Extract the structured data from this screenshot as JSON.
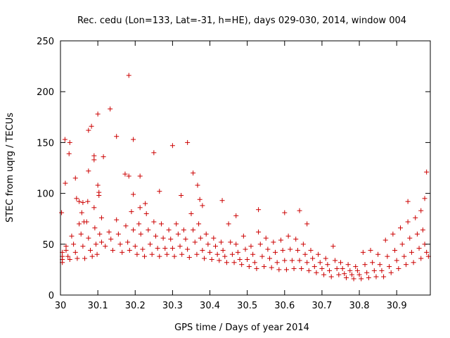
{
  "chart_data": {
    "type": "scatter",
    "title": "Rec. cedu (Lon=133, Lat=-31, h=HE), days 029-030, 2014, window 004",
    "xlabel": "GPS time / Days of year 2014",
    "ylabel": "STEC from uqrg / TECUs",
    "xlim": [
      30,
      30.99
    ],
    "ylim": [
      0,
      250
    ],
    "xticks": [
      30,
      30.1,
      30.2,
      30.3,
      30.4,
      30.5,
      30.6,
      30.7,
      30.8,
      30.9
    ],
    "xtick_labels": [
      "30",
      "30.1",
      "30.2",
      "30.3",
      "30.4",
      "30.5",
      "30.6",
      "30.7",
      "30.8",
      "30.9"
    ],
    "yticks": [
      0,
      50,
      100,
      150,
      200,
      250
    ],
    "ytick_labels": [
      "0",
      "50",
      "100",
      "150",
      "200",
      "250"
    ],
    "marker": "+",
    "color": "#cc0000",
    "grid": false,
    "series": [
      {
        "name": "STEC",
        "points": [
          [
            30.003,
            81
          ],
          [
            30.013,
            110
          ],
          [
            30.012,
            153
          ],
          [
            30.025,
            150
          ],
          [
            30.023,
            139
          ],
          [
            30.04,
            115
          ],
          [
            30.043,
            95
          ],
          [
            30.05,
            92
          ],
          [
            30.057,
            81
          ],
          [
            30.06,
            91
          ],
          [
            30.063,
            72
          ],
          [
            30.073,
            92
          ],
          [
            30.075,
            162
          ],
          [
            30.075,
            122
          ],
          [
            30.083,
            166
          ],
          [
            30.09,
            137
          ],
          [
            30.09,
            133
          ],
          [
            30.1,
            178
          ],
          [
            30.1,
            108
          ],
          [
            30.103,
            101
          ],
          [
            30.103,
            98
          ],
          [
            30.11,
            76
          ],
          [
            30.115,
            136
          ],
          [
            30.133,
            183
          ],
          [
            30.15,
            156
          ],
          [
            30.173,
            119
          ],
          [
            30.183,
            216
          ],
          [
            30.183,
            117
          ],
          [
            30.195,
            153
          ],
          [
            30.195,
            99
          ],
          [
            30.213,
            117
          ],
          [
            30.213,
            86
          ],
          [
            30.227,
            90
          ],
          [
            30.25,
            140
          ],
          [
            30.265,
            102
          ],
          [
            30.3,
            147
          ],
          [
            30.323,
            98
          ],
          [
            30.34,
            150
          ],
          [
            30.355,
            120
          ],
          [
            30.367,
            108
          ],
          [
            30.373,
            94
          ],
          [
            30.38,
            88
          ],
          [
            30.433,
            93
          ],
          [
            30.47,
            78
          ],
          [
            30.53,
            84
          ],
          [
            30.6,
            81
          ],
          [
            30.64,
            83
          ],
          [
            30.66,
            70
          ],
          [
            30.93,
            92
          ],
          [
            30.98,
            121
          ],
          [
            30.975,
            95
          ],
          [
            30.965,
            83
          ],
          [
            30.005,
            42
          ],
          [
            30.005,
            38
          ],
          [
            30.005,
            35
          ],
          [
            30.005,
            32
          ],
          [
            30.015,
            48
          ],
          [
            30.015,
            44
          ],
          [
            30.02,
            38
          ],
          [
            30.025,
            35
          ],
          [
            30.03,
            58
          ],
          [
            30.035,
            50
          ],
          [
            30.04,
            42
          ],
          [
            30.045,
            36
          ],
          [
            30.05,
            70
          ],
          [
            30.055,
            60
          ],
          [
            30.06,
            48
          ],
          [
            30.065,
            36
          ],
          [
            30.07,
            72
          ],
          [
            30.075,
            56
          ],
          [
            30.08,
            44
          ],
          [
            30.085,
            38
          ],
          [
            30.09,
            86
          ],
          [
            30.092,
            66
          ],
          [
            30.095,
            50
          ],
          [
            30.098,
            40
          ],
          [
            30.105,
            60
          ],
          [
            30.11,
            52
          ],
          [
            30.12,
            48
          ],
          [
            30.13,
            62
          ],
          [
            30.135,
            55
          ],
          [
            30.14,
            44
          ],
          [
            30.15,
            74
          ],
          [
            30.155,
            60
          ],
          [
            30.16,
            50
          ],
          [
            30.165,
            42
          ],
          [
            30.175,
            68
          ],
          [
            30.18,
            52
          ],
          [
            30.185,
            44
          ],
          [
            30.19,
            82
          ],
          [
            30.195,
            64
          ],
          [
            30.2,
            48
          ],
          [
            30.205,
            40
          ],
          [
            30.21,
            70
          ],
          [
            30.215,
            60
          ],
          [
            30.22,
            45
          ],
          [
            30.225,
            38
          ],
          [
            30.23,
            80
          ],
          [
            30.235,
            64
          ],
          [
            30.24,
            50
          ],
          [
            30.245,
            40
          ],
          [
            30.25,
            72
          ],
          [
            30.255,
            58
          ],
          [
            30.26,
            46
          ],
          [
            30.265,
            38
          ],
          [
            30.27,
            70
          ],
          [
            30.275,
            56
          ],
          [
            30.28,
            46
          ],
          [
            30.285,
            40
          ],
          [
            30.29,
            64
          ],
          [
            30.295,
            55
          ],
          [
            30.3,
            46
          ],
          [
            30.305,
            38
          ],
          [
            30.31,
            70
          ],
          [
            30.315,
            60
          ],
          [
            30.32,
            48
          ],
          [
            30.325,
            40
          ],
          [
            30.33,
            64
          ],
          [
            30.335,
            55
          ],
          [
            30.34,
            45
          ],
          [
            30.345,
            37
          ],
          [
            30.35,
            80
          ],
          [
            30.355,
            64
          ],
          [
            30.36,
            52
          ],
          [
            30.365,
            40
          ],
          [
            30.37,
            70
          ],
          [
            30.375,
            56
          ],
          [
            30.38,
            44
          ],
          [
            30.385,
            36
          ],
          [
            30.39,
            60
          ],
          [
            30.395,
            50
          ],
          [
            30.4,
            42
          ],
          [
            30.405,
            35
          ],
          [
            30.41,
            56
          ],
          [
            30.415,
            48
          ],
          [
            30.42,
            40
          ],
          [
            30.425,
            34
          ],
          [
            30.43,
            52
          ],
          [
            30.435,
            44
          ],
          [
            30.44,
            38
          ],
          [
            30.445,
            32
          ],
          [
            30.45,
            70
          ],
          [
            30.455,
            52
          ],
          [
            30.46,
            40
          ],
          [
            30.465,
            32
          ],
          [
            30.47,
            50
          ],
          [
            30.475,
            42
          ],
          [
            30.48,
            35
          ],
          [
            30.485,
            30
          ],
          [
            30.49,
            58
          ],
          [
            30.495,
            45
          ],
          [
            30.5,
            35
          ],
          [
            30.505,
            28
          ],
          [
            30.51,
            48
          ],
          [
            30.515,
            40
          ],
          [
            30.52,
            32
          ],
          [
            30.525,
            26
          ],
          [
            30.53,
            62
          ],
          [
            30.535,
            50
          ],
          [
            30.54,
            38
          ],
          [
            30.545,
            28
          ],
          [
            30.55,
            56
          ],
          [
            30.555,
            45
          ],
          [
            30.56,
            36
          ],
          [
            30.565,
            27
          ],
          [
            30.57,
            52
          ],
          [
            30.575,
            42
          ],
          [
            30.58,
            32
          ],
          [
            30.585,
            25
          ],
          [
            30.59,
            54
          ],
          [
            30.595,
            44
          ],
          [
            30.6,
            34
          ],
          [
            30.605,
            25
          ],
          [
            30.61,
            58
          ],
          [
            30.615,
            45
          ],
          [
            30.62,
            34
          ],
          [
            30.625,
            26
          ],
          [
            30.63,
            55
          ],
          [
            30.635,
            44
          ],
          [
            30.64,
            34
          ],
          [
            30.645,
            26
          ],
          [
            30.65,
            50
          ],
          [
            30.655,
            40
          ],
          [
            30.66,
            32
          ],
          [
            30.665,
            24
          ],
          [
            30.67,
            44
          ],
          [
            30.675,
            36
          ],
          [
            30.68,
            28
          ],
          [
            30.685,
            22
          ],
          [
            30.69,
            40
          ],
          [
            30.695,
            32
          ],
          [
            30.7,
            26
          ],
          [
            30.705,
            20
          ],
          [
            30.71,
            36
          ],
          [
            30.715,
            30
          ],
          [
            30.72,
            24
          ],
          [
            30.725,
            18
          ],
          [
            30.73,
            48
          ],
          [
            30.735,
            34
          ],
          [
            30.74,
            26
          ],
          [
            30.745,
            20
          ],
          [
            30.75,
            32
          ],
          [
            30.755,
            26
          ],
          [
            30.76,
            21
          ],
          [
            30.765,
            17
          ],
          [
            30.77,
            30
          ],
          [
            30.775,
            24
          ],
          [
            30.78,
            20
          ],
          [
            30.785,
            16
          ],
          [
            30.79,
            28
          ],
          [
            30.795,
            24
          ],
          [
            30.8,
            20
          ],
          [
            30.805,
            16
          ],
          [
            30.81,
            42
          ],
          [
            30.815,
            30
          ],
          [
            30.82,
            22
          ],
          [
            30.825,
            17
          ],
          [
            30.83,
            44
          ],
          [
            30.835,
            32
          ],
          [
            30.84,
            24
          ],
          [
            30.845,
            18
          ],
          [
            30.85,
            40
          ],
          [
            30.855,
            30
          ],
          [
            30.86,
            24
          ],
          [
            30.865,
            18
          ],
          [
            30.87,
            54
          ],
          [
            30.875,
            38
          ],
          [
            30.88,
            28
          ],
          [
            30.885,
            22
          ],
          [
            30.89,
            60
          ],
          [
            30.895,
            44
          ],
          [
            30.9,
            34
          ],
          [
            30.905,
            26
          ],
          [
            30.91,
            66
          ],
          [
            30.915,
            50
          ],
          [
            30.92,
            38
          ],
          [
            30.925,
            30
          ],
          [
            30.93,
            72
          ],
          [
            30.935,
            56
          ],
          [
            30.94,
            42
          ],
          [
            30.945,
            32
          ],
          [
            30.95,
            76
          ],
          [
            30.955,
            60
          ],
          [
            30.96,
            46
          ],
          [
            30.965,
            36
          ],
          [
            30.97,
            64
          ],
          [
            30.975,
            50
          ],
          [
            30.98,
            42
          ],
          [
            30.985,
            38
          ]
        ]
      }
    ]
  }
}
